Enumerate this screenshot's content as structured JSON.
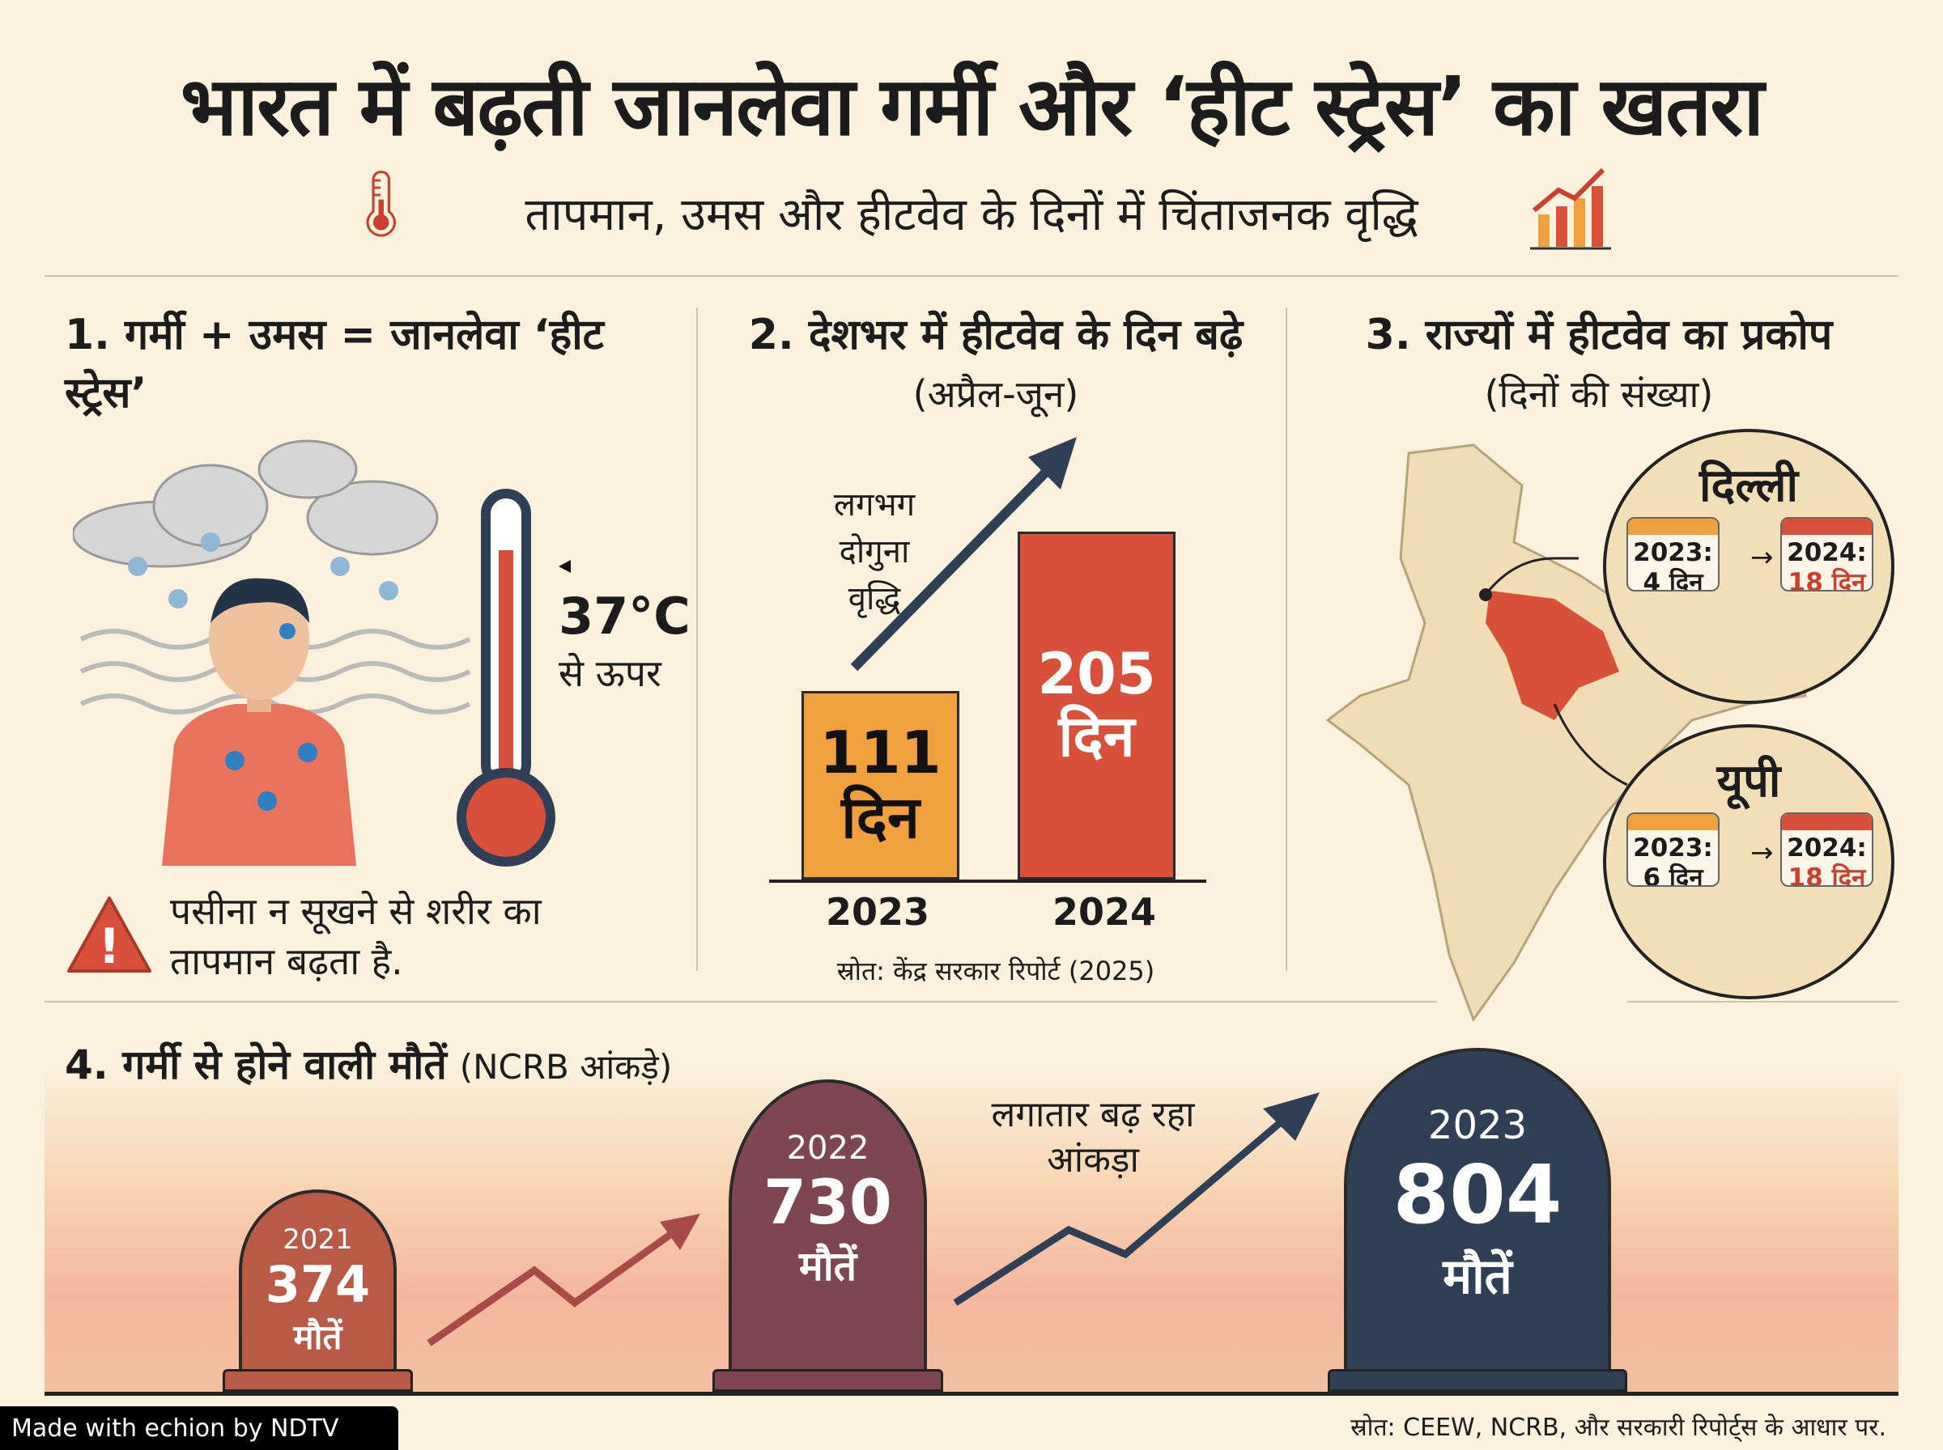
{
  "header": {
    "title": "भारत में बढ़ती जानलेवा गर्मी और ‘हीट स्ट्रेस’ का खतरा",
    "subtitle": "तापमान, उमस और हीटवेव के दिनों में चिंताजनक वृद्धि"
  },
  "section1": {
    "title": "1. गर्मी + उमस = जानलेवा ‘हीट स्ट्रेस’",
    "temp": "37°C",
    "temp_note": "से ऊपर",
    "warning": "पसीना न सूखने से शरीर का तापमान बढ़ता है."
  },
  "section2": {
    "title": "2. देशभर में हीटवेव के दिन बढ़े",
    "subtitle": "(अप्रैल-जून)",
    "annotation": "लगभग दोगुना वृद्धि",
    "source": "स्रोत: केंद्र सरकार रिपोर्ट (2025)"
  },
  "section3": {
    "title": "3. राज्यों में हीटवेव का प्रकोप",
    "subtitle": "(दिनों की संख्या)",
    "states": [
      {
        "name": "दिल्ली",
        "y2023": "2023:",
        "v2023": "4 दिन",
        "y2024": "2024:",
        "v2024": "18 दिन"
      },
      {
        "name": "यूपी",
        "y2023": "2023:",
        "v2023": "6 दिन",
        "y2024": "2024:",
        "v2024": "18 दिन"
      }
    ]
  },
  "section4": {
    "title": "4. गर्मी से होने वाली मौतें",
    "title_note": "(NCRB आंकड़े)",
    "annotation": "लगातार बढ़ रहा आंकड़ा",
    "unit": "मौतें"
  },
  "chart_data": [
    {
      "type": "bar",
      "title": "देशभर में हीटवेव के दिन बढ़े",
      "categories": [
        "2023",
        "2024"
      ],
      "values": [
        111,
        205
      ],
      "value_labels": [
        "111",
        "205"
      ],
      "unit": "दिन",
      "colors": [
        "#f0a03c",
        "#d9503a"
      ]
    },
    {
      "type": "bar",
      "title": "गर्मी से होने वाली मौतें",
      "categories": [
        "2021",
        "2022",
        "2023"
      ],
      "values": [
        374,
        730,
        804
      ],
      "value_labels": [
        "374",
        "730",
        "804"
      ],
      "unit": "मौतें",
      "colors": [
        "#b85a45",
        "#7d4650",
        "#2f3f56"
      ]
    }
  ],
  "footer": {
    "badge": "Made with echion by NDTV",
    "source": "स्रोत: CEEW, NCRB, और सरकारी रिपोर्ट्स के आधार पर."
  }
}
